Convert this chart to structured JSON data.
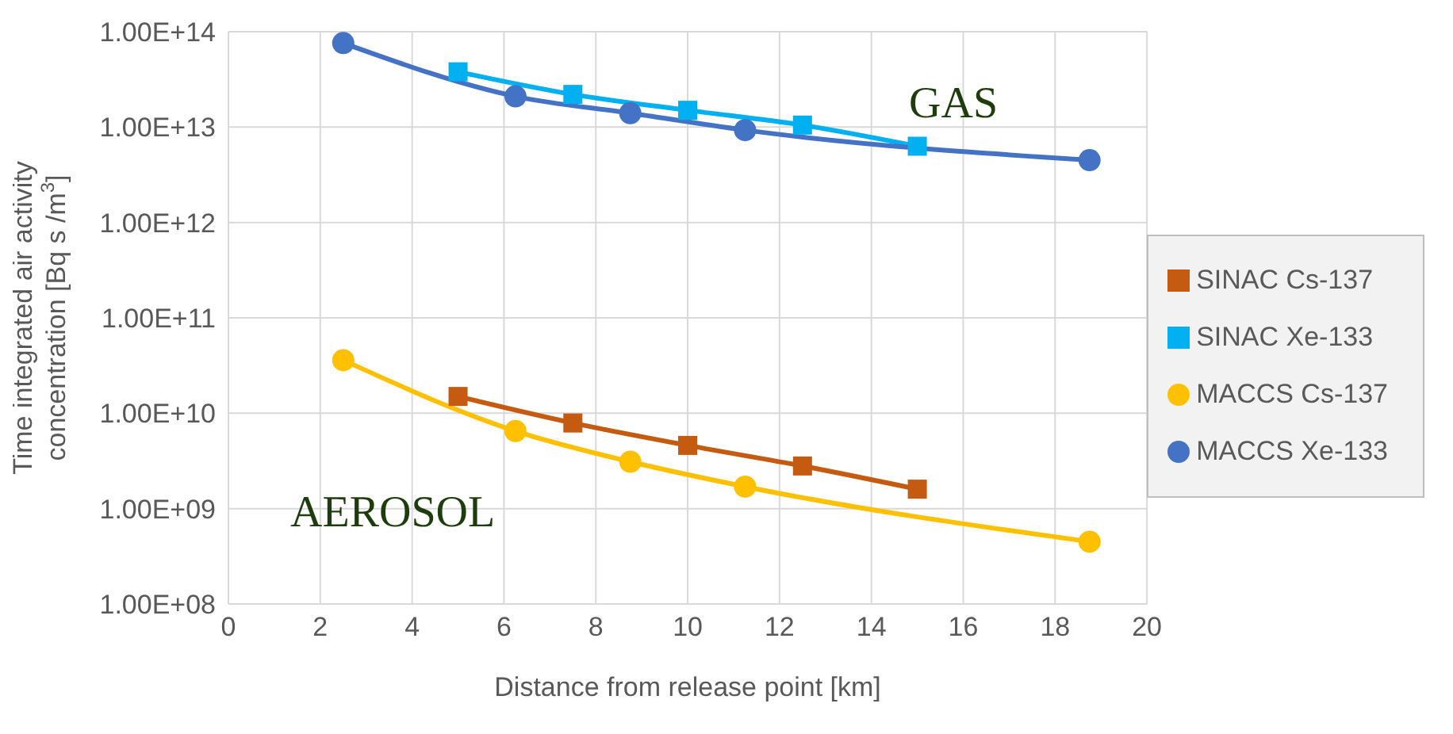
{
  "chart_data": {
    "type": "line",
    "xlabel": "Distance from release point [km]",
    "ylabel": "Time integrated air activity concentration [Bq s /m$^{3}$]",
    "xlim": [
      0,
      20
    ],
    "xticks": [
      0,
      2,
      4,
      6,
      8,
      10,
      12,
      14,
      16,
      18,
      20
    ],
    "ylim": [
      100000000,
      100000000000000
    ],
    "log": "y",
    "yticks": [
      {
        "value": 100000000,
        "label": "1.00E+08"
      },
      {
        "value": 1000000000,
        "label": "1.00E+09"
      },
      {
        "value": 10000000000,
        "label": "1.00E+10"
      },
      {
        "value": 100000000000,
        "label": "1.00E+11"
      },
      {
        "value": 1000000000000,
        "label": "1.00E+12"
      },
      {
        "value": 10000000000000,
        "label": "1.00E+13"
      },
      {
        "value": 100000000000000,
        "label": "1.00E+14"
      }
    ],
    "grid": true,
    "legend": "right",
    "annotations": [
      "GAS",
      "AEROSOL"
    ],
    "series": [
      {
        "name": "SINAC Cs-137",
        "color": "#c55a11",
        "marker": "square",
        "x": [
          5,
          7.5,
          10,
          12.5,
          15
        ],
        "values": [
          15000000000,
          7900000000,
          4600000000,
          2800000000,
          1600000000
        ]
      },
      {
        "name": "SINAC Xe-133",
        "color": "#00b0f0",
        "marker": "square",
        "x": [
          5,
          7.5,
          10,
          12.5,
          15
        ],
        "values": [
          38000000000000,
          22000000000000,
          15000000000000,
          10500000000000,
          6300000000000
        ]
      },
      {
        "name": "MACCS Cs-137",
        "color": "#ffc000",
        "marker": "circle",
        "x": [
          2.5,
          6.25,
          8.75,
          11.25,
          18.75
        ],
        "values": [
          36000000000,
          6500000000,
          3100000000,
          1700000000,
          450000000
        ]
      },
      {
        "name": "MACCS Xe-133",
        "color": "#4472c4",
        "marker": "circle",
        "x": [
          2.5,
          6.25,
          8.75,
          11.25,
          18.75
        ],
        "values": [
          76000000000000,
          21000000000000,
          14000000000000,
          9300000000000,
          4500000000000
        ]
      }
    ]
  }
}
